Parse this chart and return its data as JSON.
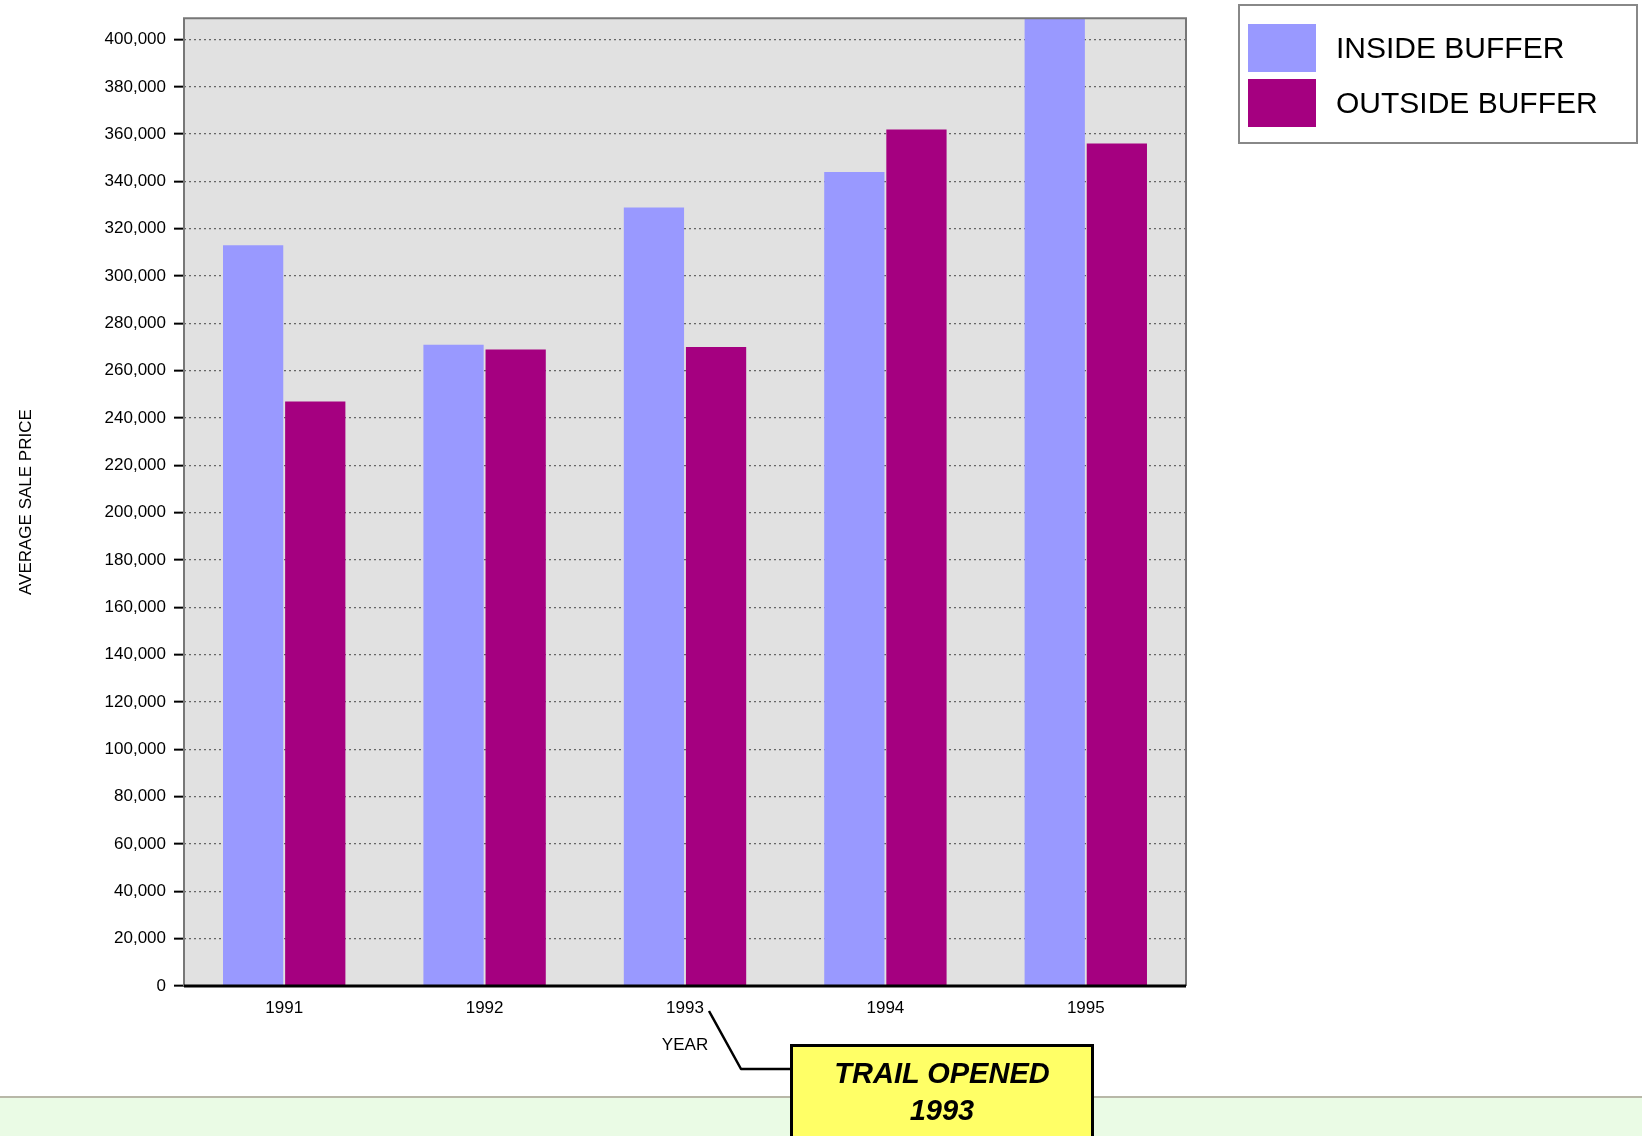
{
  "chart_data": {
    "type": "bar",
    "xlabel": "YEAR",
    "ylabel": "AVERAGE SALE PRICE",
    "categories": [
      "1991",
      "1992",
      "1993",
      "1994",
      "1995"
    ],
    "series": [
      {
        "name": "INSIDE BUFFER",
        "color": "#9999ff",
        "values": [
          313000,
          271000,
          329000,
          344000,
          409000
        ]
      },
      {
        "name": "OUTSIDE BUFFER",
        "color": "#a50080",
        "values": [
          247000,
          269000,
          270000,
          362000,
          356000
        ]
      }
    ],
    "ylim": [
      0,
      409000
    ],
    "yticks": [
      0,
      {
        "value": 20000,
        "label": "20,000"
      },
      {
        "value": 40000,
        "label": "40,000"
      },
      {
        "value": 60000,
        "label": "60,000"
      },
      {
        "value": 80000,
        "label": "80,000"
      },
      {
        "value": 100000,
        "label": "100,000"
      },
      {
        "value": 120000,
        "label": "120,000"
      },
      {
        "value": 140000,
        "label": "140,000"
      },
      {
        "value": 160000,
        "label": "160,000"
      },
      {
        "value": 180000,
        "label": "180,000"
      },
      {
        "value": 200000,
        "label": "200,000"
      },
      {
        "value": 220000,
        "label": "220,000"
      },
      {
        "value": 240000,
        "label": "240,000"
      },
      {
        "value": 260000,
        "label": "260,000"
      },
      {
        "value": 280000,
        "label": "280,000"
      },
      {
        "value": 300000,
        "label": "300,000"
      },
      {
        "value": 320000,
        "label": "320,000"
      },
      {
        "value": 340000,
        "label": "340,000"
      },
      {
        "value": 360000,
        "label": "360,000"
      },
      {
        "value": 380000,
        "label": "380,000"
      },
      {
        "value": 400000,
        "label": "400,000"
      }
    ],
    "grid": "y",
    "legend": "top right",
    "annotations": [
      "TRAIL OPENED 1993"
    ]
  }
}
